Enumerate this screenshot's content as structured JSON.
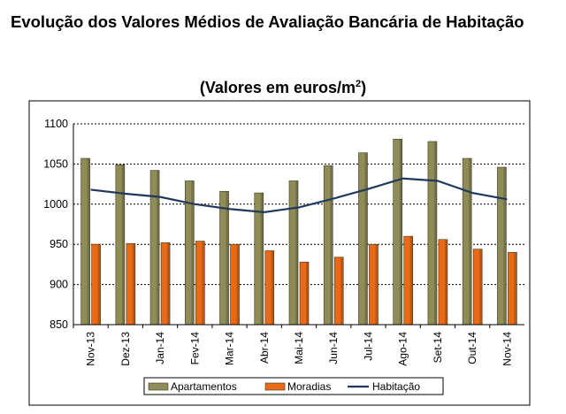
{
  "title": "Evolução dos Valores Médios de Avaliação Bancária de Habitação",
  "subtitle_prefix": "(Valores em euros/m",
  "subtitle_sup": "2",
  "subtitle_suffix": ")",
  "colors": {
    "apartamentos": "#8f8c58",
    "moradias": "#e86a16",
    "habitacao": "#1f3a5c",
    "grid": "#000000"
  },
  "chart_data": {
    "type": "bar",
    "categories": [
      "Nov-13",
      "Dez-13",
      "Jan-14",
      "Fev-14",
      "Mar-14",
      "Abr-14",
      "Mai-14",
      "Jun-14",
      "Jul-14",
      "Ago-14",
      "Set-14",
      "Out-14",
      "Nov-14"
    ],
    "series": [
      {
        "name": "Apartamentos",
        "kind": "bar",
        "values": [
          1057,
          1049,
          1042,
          1029,
          1016,
          1014,
          1029,
          1048,
          1064,
          1081,
          1078,
          1057,
          1046
        ]
      },
      {
        "name": "Moradias",
        "kind": "bar",
        "values": [
          950,
          951,
          952,
          954,
          950,
          942,
          928,
          934,
          950,
          960,
          956,
          944,
          940
        ]
      },
      {
        "name": "Habitação",
        "kind": "line",
        "values": [
          1018,
          1013,
          1009,
          1000,
          994,
          990,
          996,
          1007,
          1019,
          1032,
          1029,
          1014,
          1006
        ]
      }
    ],
    "ylim": [
      850,
      1100
    ],
    "yticks": [
      "850",
      "900",
      "950",
      "1000",
      "1050",
      "1100"
    ],
    "grid": true,
    "legend_position": "bottom"
  }
}
